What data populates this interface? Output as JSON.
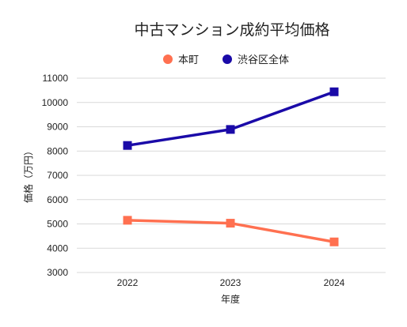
{
  "chart_data": {
    "type": "line",
    "title": "中古マンション成約平均価格",
    "xlabel": "年度",
    "ylabel": "価格（万円）",
    "categories": [
      "2022",
      "2023",
      "2024"
    ],
    "ylim": [
      3000,
      11000
    ],
    "yticks": [
      "3000",
      "4000",
      "5000",
      "6000",
      "7000",
      "8000",
      "9000",
      "10000",
      "11000"
    ],
    "grid": true,
    "legend_position": "top",
    "series": [
      {
        "name": "本町",
        "values": [
          5150,
          5030,
          4260
        ],
        "color": "#ff7050",
        "marker": "square"
      },
      {
        "name": "渋谷区全体",
        "values": [
          8230,
          8890,
          10440
        ],
        "color": "#1a0aa8",
        "marker": "square"
      }
    ]
  }
}
